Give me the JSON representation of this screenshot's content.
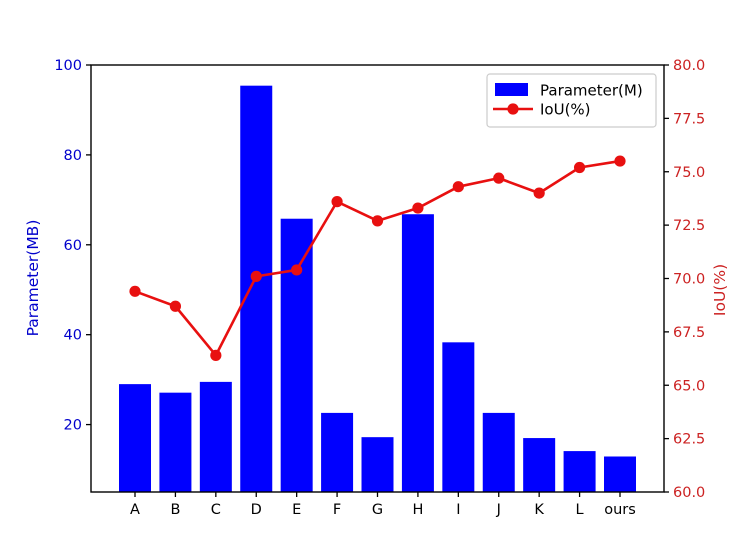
{
  "chart_data": {
    "type": "bar",
    "subtype": "bar-line-combo-dual-axis",
    "title": "",
    "categories": [
      "A",
      "B",
      "C",
      "D",
      "E",
      "F",
      "G",
      "H",
      "I",
      "J",
      "K",
      "L",
      "ours"
    ],
    "series": [
      {
        "name": "Parameter(M)",
        "type": "bar",
        "axis": "left",
        "color": "#0000ff",
        "values": [
          29.0,
          27.1,
          29.5,
          95.4,
          65.8,
          22.6,
          17.2,
          66.8,
          38.3,
          22.6,
          17.0,
          14.1,
          12.9
        ]
      },
      {
        "name": "IoU(%)",
        "type": "line",
        "axis": "right",
        "color": "#e81010",
        "marker": "circle",
        "values": [
          69.4,
          68.7,
          66.4,
          70.1,
          70.4,
          73.6,
          72.7,
          73.3,
          74.3,
          74.7,
          74.0,
          75.2,
          75.5
        ]
      }
    ],
    "left_axis": {
      "label": "Parameter(MB)",
      "tick_labels": [
        "20",
        "40",
        "60",
        "80",
        "100"
      ],
      "tick_values": [
        20,
        40,
        60,
        80,
        100
      ],
      "lim": [
        5,
        100
      ],
      "label_color": "#0000cc"
    },
    "right_axis": {
      "label": "IoU(%)",
      "tick_labels": [
        "60.0",
        "62.5",
        "65.0",
        "67.5",
        "70.0",
        "72.5",
        "75.0",
        "77.5",
        "80.0"
      ],
      "tick_values": [
        60.0,
        62.5,
        65.0,
        67.5,
        70.0,
        72.5,
        75.0,
        77.5,
        80.0
      ],
      "lim": [
        60,
        80
      ],
      "label_color": "#cc2222"
    },
    "x_axis": {
      "label": "",
      "tick_color": "#000000"
    },
    "legend": {
      "position": "upper right",
      "items": [
        {
          "label": "Parameter(M)",
          "swatch": "blue-rect"
        },
        {
          "label": "IoU(%)",
          "swatch": "red-line-dot"
        }
      ]
    },
    "grid": false,
    "spine_color": "#000000",
    "background": "#ffffff"
  }
}
